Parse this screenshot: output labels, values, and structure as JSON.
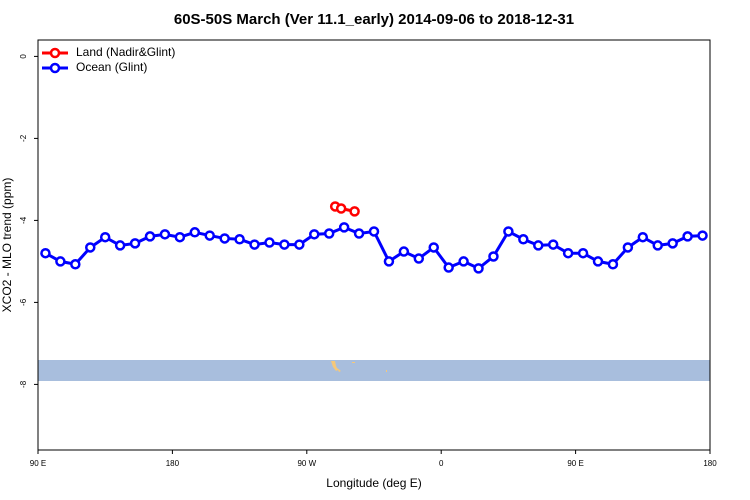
{
  "chart_data": {
    "type": "line",
    "title": "60S-50S March (Ver 11.1_early)   2014-09-06 to 2018-12-31",
    "xlabel": "Longitude (deg E)",
    "ylabel": "XCO2 - MLO trend (ppm)",
    "xlim": [
      90,
      540
    ],
    "xticks": [
      {
        "value": 90,
        "label": "90 E"
      },
      180,
      {
        "value": 270,
        "label": "90 W"
      },
      {
        "value": 360,
        "label": "0"
      },
      {
        "value": 450,
        "label": "90 E"
      },
      {
        "value": 540,
        "label": "180"
      }
    ],
    "ylim": [
      -9.6,
      0.4
    ],
    "yticks": [
      0,
      -2,
      -4,
      -6,
      -8
    ],
    "legend": "top-left",
    "series": [
      {
        "name": "Land (Nadir&Glint)",
        "color": "#ff0000",
        "x": [
          289,
          293,
          302
        ],
        "values": [
          -3.66,
          -3.71,
          -3.78
        ]
      },
      {
        "name": "Ocean (Glint)",
        "color": "#0000ff",
        "x": [
          95,
          105,
          115,
          125,
          135,
          145,
          155,
          165,
          175,
          185,
          195,
          205,
          215,
          225,
          235,
          245,
          255,
          265,
          275,
          285,
          295,
          305,
          315,
          325,
          335,
          345,
          355,
          365,
          375,
          385,
          395,
          405,
          415,
          425,
          435,
          445,
          455,
          465,
          475,
          485,
          495,
          505,
          515,
          525,
          535
        ],
        "values": [
          -4.8,
          -5.0,
          -5.07,
          -4.66,
          -4.41,
          -4.61,
          -4.56,
          -4.39,
          -4.34,
          -4.41,
          -4.29,
          -4.37,
          -4.44,
          -4.46,
          -4.59,
          -4.54,
          -4.59,
          -4.59,
          -4.34,
          -4.32,
          -4.17,
          -4.32,
          -4.27,
          -5.0,
          -4.76,
          -4.93,
          -4.66,
          -5.15,
          -5.0,
          -5.17,
          -4.88,
          -4.27,
          -4.46,
          -4.61,
          -4.59,
          -4.8,
          -4.8,
          -5.0,
          -5.07,
          -4.66,
          -4.41,
          -4.61,
          -4.56,
          -4.39,
          -4.37
        ]
      }
    ]
  }
}
